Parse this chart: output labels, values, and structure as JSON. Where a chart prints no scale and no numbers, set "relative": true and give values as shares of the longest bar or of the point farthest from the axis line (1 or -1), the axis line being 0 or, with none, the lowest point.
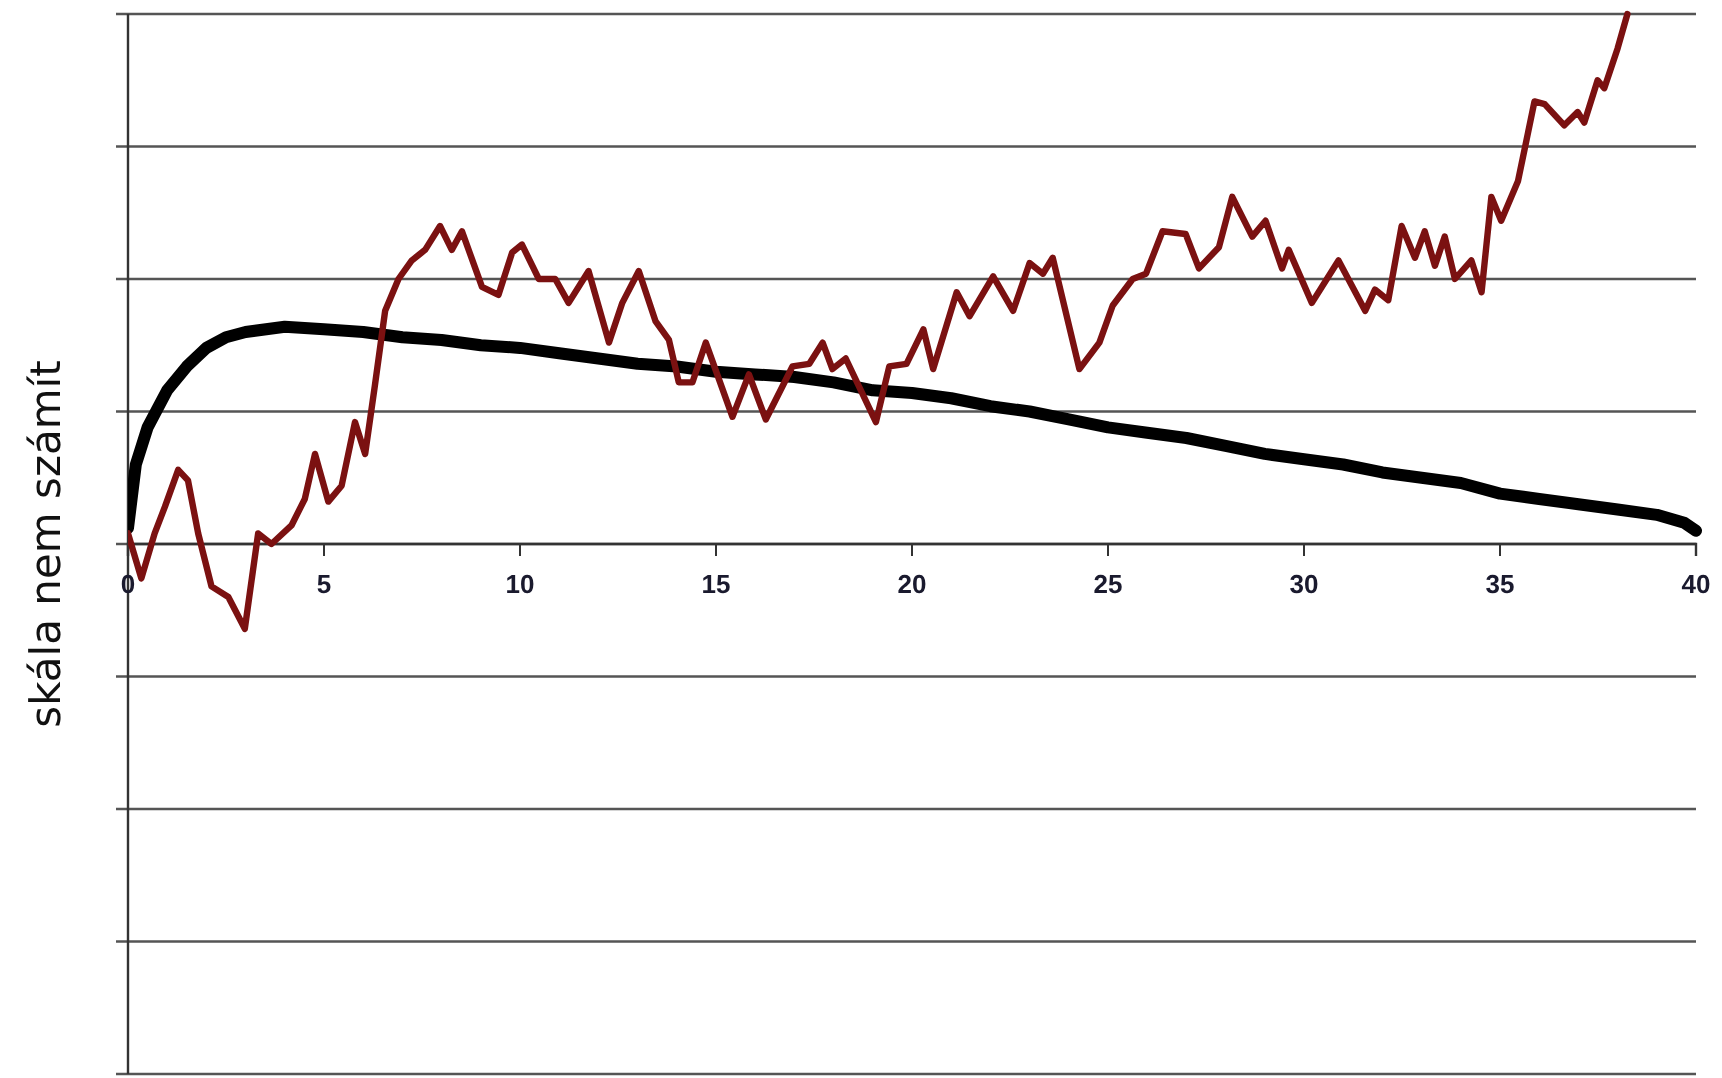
{
  "chart_data": {
    "type": "line",
    "ylabel": "skála nem számít",
    "relative": true,
    "tick_labels": "x",
    "grid": "y",
    "marker": "none",
    "line_style": "solid",
    "xlim": [
      0,
      40
    ],
    "xticks": [
      0,
      5,
      10,
      15,
      20,
      25,
      30,
      35,
      40
    ],
    "series": [
      {
        "color": "#000000",
        "x": [
          0,
          0.2,
          0.5,
          1,
          1.5,
          2,
          2.5,
          3,
          4,
          5,
          6,
          7,
          8,
          9,
          10,
          11,
          12,
          13,
          14,
          15,
          16,
          17,
          18,
          19,
          20,
          21,
          22,
          23,
          24,
          25,
          26,
          27,
          28,
          29,
          30,
          31,
          32,
          33,
          34,
          35,
          36,
          37,
          38,
          39,
          39.7,
          40
        ],
        "values": [
          0.03,
          0.15,
          0.22,
          0.29,
          0.335,
          0.37,
          0.39,
          0.4,
          0.41,
          0.405,
          0.4,
          0.39,
          0.385,
          0.375,
          0.37,
          0.36,
          0.35,
          0.34,
          0.335,
          0.325,
          0.32,
          0.315,
          0.305,
          0.29,
          0.285,
          0.275,
          0.26,
          0.25,
          0.235,
          0.22,
          0.21,
          0.2,
          0.185,
          0.17,
          0.16,
          0.15,
          0.135,
          0.125,
          0.115,
          0.095,
          0.085,
          0.075,
          0.065,
          0.055,
          0.04,
          0.025
        ]
      },
      {
        "color": "#7b1111",
        "x": [
          0,
          0.34,
          0.68,
          0.94,
          1.28,
          1.53,
          1.79,
          2.13,
          2.56,
          2.98,
          3.32,
          3.66,
          4.17,
          4.51,
          4.77,
          5.11,
          5.45,
          5.79,
          6.05,
          6.3,
          6.56,
          6.9,
          7.24,
          7.58,
          7.96,
          8.26,
          8.52,
          9.03,
          9.45,
          9.8,
          10.05,
          10.48,
          10.9,
          11.24,
          11.75,
          12.27,
          12.61,
          13.03,
          13.46,
          13.8,
          14.05,
          14.4,
          14.74,
          15.42,
          15.84,
          16.27,
          16.95,
          17.38,
          17.72,
          17.97,
          18.31,
          19.08,
          19.42,
          19.86,
          20.29,
          20.54,
          21.14,
          21.47,
          22.07,
          22.58,
          23.0,
          23.34,
          23.59,
          24.27,
          24.78,
          25.12,
          25.63,
          25.97,
          26.39,
          26.98,
          27.32,
          27.83,
          28.17,
          28.68,
          29.02,
          29.44,
          29.61,
          30.2,
          30.88,
          31.56,
          31.81,
          32.15,
          32.49,
          32.83,
          33.08,
          33.34,
          33.59,
          33.85,
          34.27,
          34.53,
          34.78,
          35.03,
          35.46,
          35.88,
          36.14,
          36.64,
          36.98,
          37.15,
          37.49,
          37.66,
          38.0,
          38.25
        ],
        "values": [
          0.02,
          -0.065,
          0.02,
          0.07,
          0.14,
          0.12,
          0.02,
          -0.08,
          -0.1,
          -0.16,
          0.02,
          0.0,
          0.035,
          0.085,
          0.17,
          0.08,
          0.11,
          0.23,
          0.17,
          0.3,
          0.44,
          0.5,
          0.535,
          0.555,
          0.6,
          0.555,
          0.59,
          0.485,
          0.47,
          0.55,
          0.565,
          0.5,
          0.5,
          0.455,
          0.515,
          0.38,
          0.455,
          0.515,
          0.42,
          0.385,
          0.305,
          0.305,
          0.38,
          0.24,
          0.32,
          0.235,
          0.335,
          0.34,
          0.38,
          0.33,
          0.35,
          0.23,
          0.335,
          0.34,
          0.405,
          0.33,
          0.475,
          0.43,
          0.505,
          0.44,
          0.53,
          0.51,
          0.54,
          0.33,
          0.38,
          0.45,
          0.5,
          0.51,
          0.59,
          0.585,
          0.52,
          0.56,
          0.655,
          0.58,
          0.61,
          0.52,
          0.555,
          0.455,
          0.535,
          0.44,
          0.48,
          0.46,
          0.6,
          0.54,
          0.59,
          0.525,
          0.58,
          0.5,
          0.535,
          0.475,
          0.655,
          0.61,
          0.685,
          0.835,
          0.83,
          0.79,
          0.815,
          0.795,
          0.875,
          0.86,
          0.935,
          1.0
        ]
      }
    ]
  }
}
